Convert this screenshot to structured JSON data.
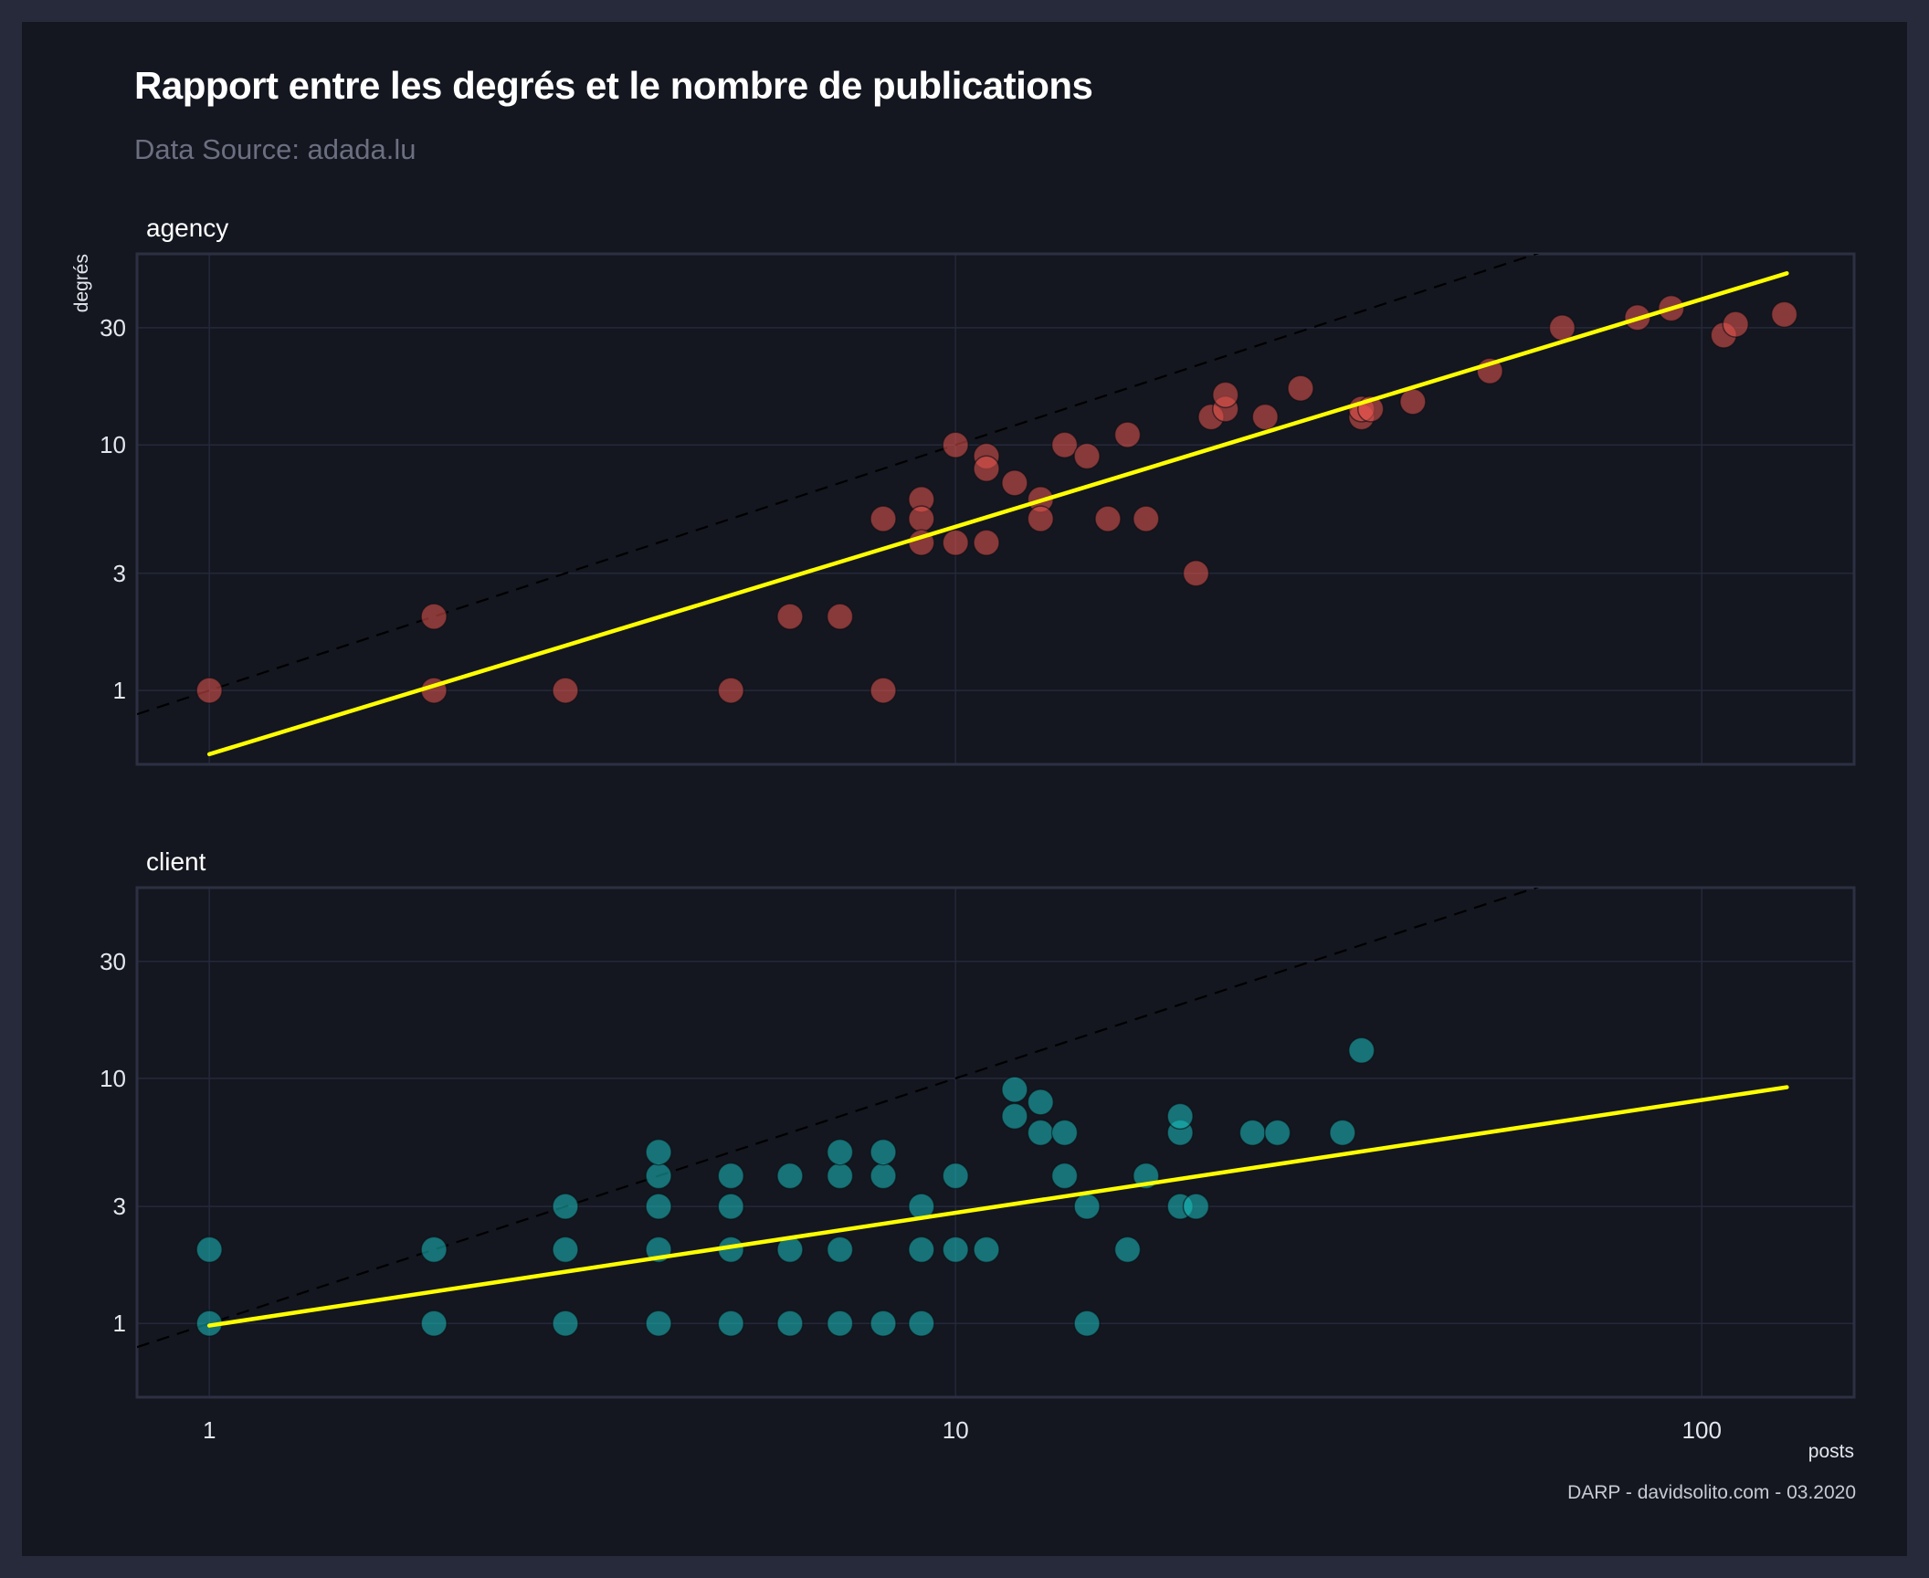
{
  "title": "Rapport entre les degrés et le nombre de publications",
  "subtitle": "Data Source: adada.lu",
  "caption": "DARP - davidsolito.com - 03.2020",
  "colors": {
    "background": "#141720",
    "frame": "#272a3a",
    "agency": "#e8554e",
    "client": "#19c0c0",
    "fit": "#ffff00",
    "reference": "#000000"
  },
  "chart_data": {
    "type": "scatter",
    "x_scale": "log",
    "y_scale": "log",
    "xlabel": "posts",
    "ylabel": "degrés",
    "xlim": [
      0.8,
      160
    ],
    "ylim": [
      0.5,
      60
    ],
    "x_ticks": [
      {
        "v": 1,
        "label": "1"
      },
      {
        "v": 10,
        "label": "10"
      },
      {
        "v": 100,
        "label": "100"
      }
    ],
    "y_ticks": [
      {
        "v": 1,
        "label": "1"
      },
      {
        "v": 3,
        "label": "3"
      },
      {
        "v": 10,
        "label": "10"
      },
      {
        "v": 30,
        "label": "30"
      }
    ],
    "grid": true,
    "reference_line": "y = x (dashed)",
    "panels": [
      {
        "name": "agency",
        "color": "#e8554e",
        "fit": {
          "x": [
            1,
            130
          ],
          "y": [
            0.55,
            50
          ]
        },
        "points": [
          [
            1,
            1
          ],
          [
            2,
            2
          ],
          [
            2,
            1
          ],
          [
            3,
            1
          ],
          [
            5,
            1
          ],
          [
            6,
            2
          ],
          [
            7,
            2
          ],
          [
            8,
            1
          ],
          [
            8,
            5
          ],
          [
            9,
            6
          ],
          [
            9,
            5
          ],
          [
            9,
            4
          ],
          [
            10,
            10
          ],
          [
            10,
            4
          ],
          [
            11,
            9
          ],
          [
            11,
            8
          ],
          [
            11,
            4
          ],
          [
            12,
            7
          ],
          [
            13,
            6
          ],
          [
            13,
            5
          ],
          [
            14,
            10
          ],
          [
            15,
            9
          ],
          [
            16,
            5
          ],
          [
            17,
            11
          ],
          [
            18,
            5
          ],
          [
            21,
            3
          ],
          [
            22,
            13
          ],
          [
            23,
            14
          ],
          [
            23,
            16
          ],
          [
            26,
            13
          ],
          [
            29,
            17
          ],
          [
            35,
            13
          ],
          [
            35,
            14
          ],
          [
            36,
            14
          ],
          [
            41,
            15
          ],
          [
            52,
            20
          ],
          [
            65,
            30
          ],
          [
            82,
            33
          ],
          [
            91,
            36
          ],
          [
            107,
            28
          ],
          [
            111,
            31
          ],
          [
            129,
            34
          ]
        ]
      },
      {
        "name": "client",
        "color": "#19c0c0",
        "fit": {
          "x": [
            1,
            130
          ],
          "y": [
            0.98,
            9.2
          ]
        },
        "points": [
          [
            1,
            1
          ],
          [
            1,
            2
          ],
          [
            2,
            1
          ],
          [
            2,
            2
          ],
          [
            3,
            1
          ],
          [
            3,
            2
          ],
          [
            3,
            3
          ],
          [
            4,
            1
          ],
          [
            4,
            2
          ],
          [
            4,
            3
          ],
          [
            4,
            4
          ],
          [
            4,
            5
          ],
          [
            5,
            1
          ],
          [
            5,
            2
          ],
          [
            5,
            3
          ],
          [
            5,
            4
          ],
          [
            6,
            1
          ],
          [
            6,
            2
          ],
          [
            6,
            4
          ],
          [
            7,
            1
          ],
          [
            7,
            2
          ],
          [
            7,
            4
          ],
          [
            7,
            5
          ],
          [
            8,
            1
          ],
          [
            8,
            4
          ],
          [
            8,
            5
          ],
          [
            9,
            1
          ],
          [
            9,
            2
          ],
          [
            9,
            3
          ],
          [
            10,
            2
          ],
          [
            10,
            4
          ],
          [
            11,
            2
          ],
          [
            12,
            7
          ],
          [
            12,
            9
          ],
          [
            13,
            6
          ],
          [
            13,
            8
          ],
          [
            14,
            4
          ],
          [
            14,
            6
          ],
          [
            15,
            1
          ],
          [
            15,
            3
          ],
          [
            17,
            2
          ],
          [
            18,
            4
          ],
          [
            20,
            3
          ],
          [
            20,
            6
          ],
          [
            20,
            7
          ],
          [
            21,
            3
          ],
          [
            25,
            6
          ],
          [
            27,
            6
          ],
          [
            33,
            6
          ],
          [
            35,
            13
          ]
        ]
      }
    ]
  }
}
